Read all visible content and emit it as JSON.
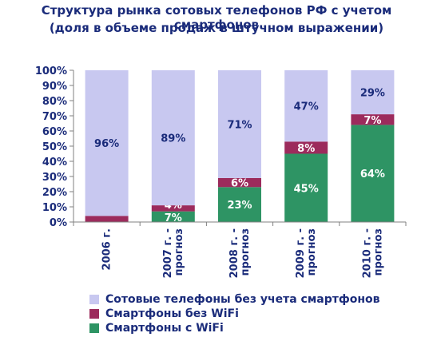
{
  "chart_data": {
    "type": "bar",
    "stacked": true,
    "title": "Структура рынка сотовых телефонов РФ с учетом смартфонов",
    "subtitle": "(доля в объеме продаж в штучном выражении)",
    "categories": [
      "2006 г.",
      "2007 г. - прогноз",
      "2008 г. - прогноз",
      "2009 г. - прогноз",
      "2010 г. - прогноз"
    ],
    "series": [
      {
        "name": "Смартфоны с WiFi",
        "values": [
          0,
          7,
          23,
          45,
          64
        ],
        "labels": [
          "",
          "7%",
          "23%",
          "45%",
          "64%"
        ],
        "color": "#2e9464",
        "label_color": "#ffffff"
      },
      {
        "name": "Смартфоны без WiFi",
        "values": [
          4,
          4,
          6,
          8,
          7
        ],
        "labels": [
          "",
          "4%",
          "6%",
          "8%",
          "7%"
        ],
        "color": "#9c2b5c",
        "label_color": "#ffffff"
      },
      {
        "name": "Сотовые телефоны без учета смартфонов",
        "values": [
          96,
          89,
          71,
          47,
          29
        ],
        "labels": [
          "96%",
          "89%",
          "71%",
          "47%",
          "29%"
        ],
        "color": "#c8c8f0",
        "label_color": "#1a2b7a"
      }
    ],
    "ylim": [
      0,
      100
    ],
    "yticks": [
      "0%",
      "10%",
      "20%",
      "30%",
      "40%",
      "50%",
      "60%",
      "70%",
      "80%",
      "90%",
      "100%"
    ],
    "legend_position": "bottom",
    "grid": false
  }
}
